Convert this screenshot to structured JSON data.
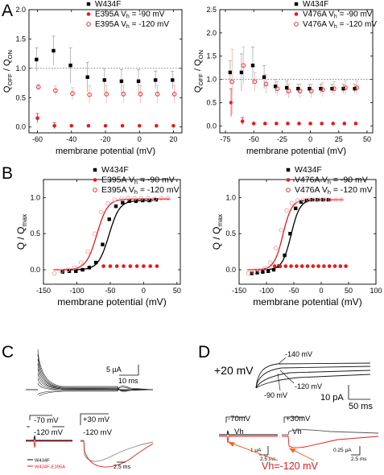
{
  "panel_letters": [
    "A",
    "B",
    "C",
    "D"
  ],
  "colors": {
    "black": "#000000",
    "red": "#e8191c",
    "pink": "#f4a3a4",
    "grey": "#8c8c8c"
  },
  "panel_c": {
    "scale_amp": "5 µA",
    "scale_time": "10 ms",
    "protocol_a": [
      "-70 mV",
      "-120 mV"
    ],
    "protocol_b": [
      "+30 mV",
      "-120 mV"
    ],
    "legend": [
      "W434F",
      "W434F-E395A"
    ],
    "scale_time_small": "2.5 ms"
  },
  "panel_d": {
    "hold_label": "+20 mV",
    "annotations": [
      "-140 mV",
      "-120 mV",
      "-90 mV"
    ],
    "scale_amp": "10 pA",
    "scale_time": "50 ms",
    "protocol_a": [
      "-70mV",
      "Vh"
    ],
    "protocol_b": [
      "+30mV",
      "Vh"
    ],
    "scale_small_a": [
      "1 µA",
      "2.5 ms"
    ],
    "scale_small_b": [
      "0.25 µA",
      "2.5 ms"
    ],
    "vh_label": "Vh=-120 mV"
  },
  "chart_data": [
    {
      "type": "scatter",
      "panel": "A",
      "xlabel": "membrane potential (mV)",
      "ylabel": "Q",
      "ylabel_sub_1": "OFF",
      "ylabel_mid": " / Q",
      "ylabel_sub_2": "ON",
      "xlim": [
        -65,
        25
      ],
      "ylim": [
        -0.1,
        2.0
      ],
      "xticks": [
        -60,
        -40,
        -20,
        0,
        20
      ],
      "yticks": [
        0.0,
        0.5,
        1.0,
        1.5,
        2.0
      ],
      "reference_line": 1.0,
      "legend": [
        {
          "label": "W434F",
          "marker": "square",
          "color": "#000000"
        },
        {
          "label": "E395A V",
          "sub": "h",
          "tail": " =  -90 mV",
          "marker": "dot",
          "color": "#e8191c"
        },
        {
          "label": "E395A V",
          "sub": "h",
          "tail": " = -120 mV",
          "marker": "ring",
          "color": "#e8191c"
        }
      ],
      "series": [
        {
          "marker": "square",
          "color": "#000000",
          "x": [
            -60,
            -50,
            -40,
            -30,
            -20,
            -10,
            0,
            10,
            20
          ],
          "y": [
            1.15,
            1.3,
            1.05,
            0.85,
            0.8,
            0.78,
            0.78,
            0.8,
            0.8
          ],
          "err": [
            0.2,
            0.25,
            0.3,
            0.25,
            0.2,
            0.2,
            0.2,
            0.15,
            0.15
          ]
        },
        {
          "marker": "dot",
          "color": "#e8191c",
          "x": [
            -60,
            -50,
            -40,
            -30,
            -20,
            -10,
            0,
            10,
            20
          ],
          "y": [
            0.15,
            0.02,
            0.02,
            0.02,
            0.02,
            0.02,
            0.02,
            0.02,
            0.02
          ],
          "err": [
            0.08,
            0.05,
            0.0,
            0.0,
            0.0,
            0.0,
            0.0,
            0.0,
            0.0
          ]
        },
        {
          "marker": "ring",
          "color": "#e8191c",
          "x": [
            -60,
            -50,
            -40,
            -30,
            -20,
            -10,
            0,
            10,
            20
          ],
          "y": [
            0.68,
            0.62,
            0.57,
            0.55,
            0.56,
            0.56,
            0.56,
            0.56,
            0.56
          ],
          "err": [
            0.05,
            0.08,
            0.1,
            0.15,
            0.15,
            0.15,
            0.15,
            0.15,
            0.15
          ]
        }
      ]
    },
    {
      "type": "scatter",
      "panel": "A",
      "xlabel": "membrane potential (mV)",
      "ylabel": "Q",
      "ylabel_sub_1": "OFF",
      "ylabel_mid": " / Q",
      "ylabel_sub_2": "ON",
      "xlim": [
        -80,
        55
      ],
      "ylim": [
        -0.15,
        2.5
      ],
      "xticks": [
        -75,
        -50,
        -25,
        0,
        25,
        50
      ],
      "yticks": [
        0.0,
        0.5,
        1.0,
        1.5,
        2.0,
        2.5
      ],
      "reference_line": 1.0,
      "legend": [
        {
          "label": "W434F",
          "marker": "square",
          "color": "#000000"
        },
        {
          "label": "V476A V",
          "sub": "h",
          "tail": " =  -90 mV",
          "marker": "dot",
          "color": "#e8191c"
        },
        {
          "label": "V476A V",
          "sub": "h",
          "tail": " = -120 mV",
          "marker": "ring",
          "color": "#e8191c"
        }
      ],
      "series": [
        {
          "marker": "square",
          "color": "#000000",
          "x": [
            -70,
            -60,
            -50,
            -40,
            -30,
            -20,
            -10,
            0,
            10,
            20,
            30,
            40
          ],
          "y": [
            1.15,
            1.15,
            1.3,
            1.05,
            0.85,
            0.82,
            0.8,
            0.8,
            0.8,
            0.8,
            0.8,
            0.8
          ],
          "err": [
            0.25,
            0.4,
            0.4,
            0.25,
            0.15,
            0.15,
            0.1,
            0.1,
            0.1,
            0.1,
            0.1,
            0.1
          ]
        },
        {
          "marker": "dot",
          "color": "#e8191c",
          "x": [
            -70,
            -60,
            -50,
            -40,
            -30,
            -20,
            -10,
            0,
            10,
            20,
            30,
            40
          ],
          "y": [
            0.5,
            0.1,
            0.05,
            0.05,
            0.05,
            0.05,
            0.05,
            0.05,
            0.05,
            0.05,
            0.05,
            0.05
          ],
          "err": [
            0.3,
            0.08,
            0.0,
            0.0,
            0.0,
            0.0,
            0.0,
            0.0,
            0.0,
            0.0,
            0.0,
            0.0
          ]
        },
        {
          "marker": "ring",
          "color": "#e8191c",
          "x": [
            -70,
            -60,
            -50,
            -40,
            -30,
            -20,
            -10,
            0,
            10,
            20,
            30,
            40
          ],
          "y": [
            0.95,
            1.3,
            0.95,
            0.9,
            0.8,
            0.75,
            0.75,
            0.75,
            0.78,
            0.8,
            0.82,
            0.82
          ],
          "err": [
            0.7,
            0.4,
            0.2,
            0.2,
            0.15,
            0.15,
            0.15,
            0.15,
            0.15,
            0.15,
            0.15,
            0.15
          ]
        }
      ]
    },
    {
      "type": "scatter",
      "panel": "B",
      "xlabel": "membrane potential (mV)",
      "ylabel": "Q / Q",
      "ylabel_sub": "max",
      "xlim": [
        -150,
        55
      ],
      "ylim": [
        -0.2,
        1.25
      ],
      "xticks": [
        -150,
        -100,
        -50,
        0,
        50
      ],
      "yticks": [
        0.0,
        0.5,
        1.0
      ],
      "legend": [
        {
          "label": "W434F",
          "marker": "square",
          "color": "#000000"
        },
        {
          "label": "E395A V",
          "sub": "h",
          "tail": " =  -90 mV",
          "marker": "dot",
          "color": "#e8191c"
        },
        {
          "label": "E395A V",
          "sub": "h",
          "tail": " = -120 mV",
          "marker": "ring",
          "color": "#e8191c"
        }
      ],
      "fits": [
        {
          "color": "#000000",
          "vhalf": -52,
          "k": 8,
          "max": 0.96,
          "x": [
            -120,
            15
          ]
        },
        {
          "color": "#e8191c",
          "vhalf": -70,
          "k": 8,
          "max": 0.98,
          "x": [
            -135,
            40
          ]
        }
      ],
      "series": [
        {
          "marker": "square",
          "color": "#000000",
          "x": [
            -120,
            -110,
            -100,
            -90,
            -80,
            -70,
            -60,
            -50,
            -40,
            -30,
            -20,
            -10,
            0,
            10,
            20
          ],
          "y": [
            -0.03,
            -0.02,
            -0.02,
            0.0,
            0.03,
            0.1,
            0.35,
            0.7,
            0.88,
            0.93,
            0.95,
            0.95,
            0.96,
            0.96,
            0.97
          ]
        },
        {
          "marker": "dot",
          "color": "#e8191c",
          "x": [
            -60,
            -50,
            -40,
            -30,
            -20,
            -10,
            0,
            10,
            20
          ],
          "y": [
            0.05,
            0.05,
            0.05,
            0.05,
            0.05,
            0.05,
            0.05,
            0.05,
            0.05
          ]
        },
        {
          "marker": "ring",
          "color": "#f4a3a4",
          "x": [
            -135,
            -125,
            -115,
            -105,
            -95,
            -85,
            -75,
            -65,
            -55,
            -45,
            -35,
            -25,
            -15,
            -5,
            5,
            15,
            25,
            35
          ],
          "y": [
            -0.05,
            -0.02,
            0.0,
            0.03,
            0.1,
            0.25,
            0.5,
            0.8,
            0.92,
            0.97,
            0.98,
            0.99,
            0.99,
            0.99,
            0.99,
            0.98,
            0.99,
            0.99
          ]
        }
      ]
    },
    {
      "type": "scatter",
      "panel": "B",
      "xlabel": "membrane potential (mV)",
      "ylabel": "Q / Q",
      "ylabel_sub": "max",
      "xlim": [
        -150,
        100
      ],
      "ylim": [
        -0.2,
        1.25
      ],
      "xticks": [
        -150,
        -100,
        -50,
        0,
        50,
        100
      ],
      "yticks": [
        0.0,
        0.5,
        1.0
      ],
      "legend": [
        {
          "label": "W434F",
          "marker": "square",
          "color": "#000000"
        },
        {
          "label": "V476A V",
          "sub": "h",
          "tail": " =  -90 mV",
          "marker": "dot",
          "color": "#e8191c"
        },
        {
          "label": "V476A V",
          "sub": "h",
          "tail": " = -120 mV",
          "marker": "ring",
          "color": "#e8191c"
        }
      ],
      "fits": [
        {
          "color": "#000000",
          "vhalf": -55,
          "k": 8,
          "max": 0.97,
          "x": [
            -125,
            20
          ]
        },
        {
          "color": "#e8191c",
          "vhalf": -70,
          "k": 8,
          "max": 0.97,
          "x": [
            -135,
            40
          ]
        }
      ],
      "series": [
        {
          "marker": "square",
          "color": "#000000",
          "x": [
            -125,
            -115,
            -105,
            -95,
            -85,
            -75,
            -65,
            -55,
            -45,
            -35,
            -25,
            -15,
            -5,
            5,
            15
          ],
          "y": [
            -0.05,
            -0.04,
            -0.03,
            -0.02,
            0.0,
            0.05,
            0.2,
            0.5,
            0.85,
            0.94,
            0.96,
            0.97,
            0.97,
            0.97,
            0.97
          ]
        },
        {
          "marker": "dot",
          "color": "#e8191c",
          "x": [
            -85,
            -75,
            -65,
            -55,
            -45,
            -35,
            -25,
            -15,
            -5,
            5,
            15,
            25,
            35,
            45
          ],
          "y": [
            0.05,
            0.05,
            0.05,
            0.05,
            0.05,
            0.05,
            0.05,
            0.05,
            0.05,
            0.05,
            0.05,
            0.05,
            0.05,
            0.05
          ]
        },
        {
          "marker": "ring",
          "color": "#f4a3a4",
          "x": [
            -135,
            -125,
            -115,
            -105,
            -95,
            -85,
            -75,
            -65,
            -55,
            -45,
            -35,
            -25,
            -15,
            -5,
            5,
            15,
            25,
            35
          ],
          "y": [
            -0.05,
            -0.03,
            -0.01,
            0.02,
            0.1,
            0.3,
            0.55,
            0.82,
            0.92,
            0.96,
            0.97,
            0.97,
            0.97,
            0.97,
            0.97,
            0.97,
            0.97,
            0.97
          ]
        }
      ]
    }
  ]
}
